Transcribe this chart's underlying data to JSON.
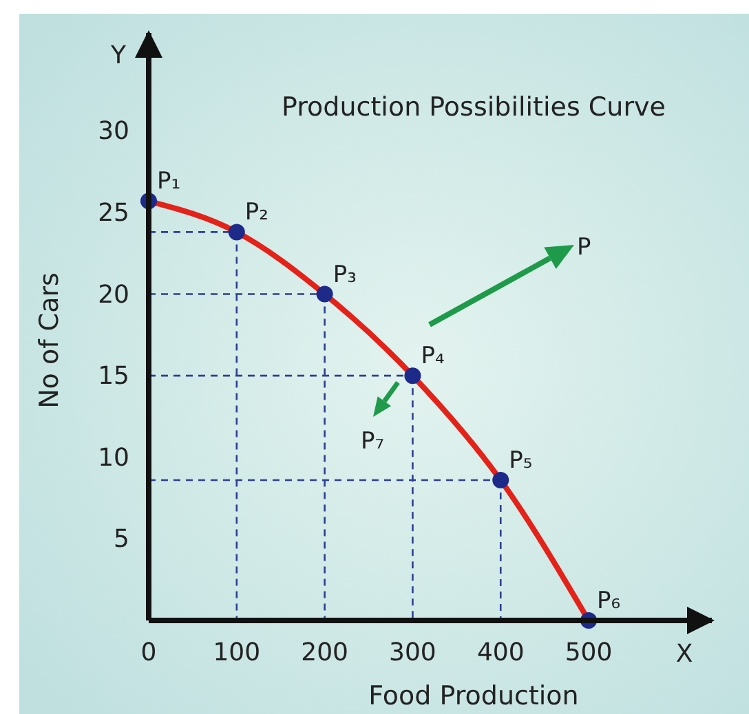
{
  "chart_data": {
    "type": "line",
    "title": "Production Possibilities Curve",
    "xlabel": "Food Production",
    "ylabel": "No of Cars",
    "x": [
      0,
      100,
      200,
      300,
      400,
      500
    ],
    "series": [
      {
        "color": "#e32219",
        "values": [
          25.7,
          23.8,
          20,
          15,
          8.6,
          0
        ],
        "marker": "none"
      },
      {
        "type": "scatter",
        "color": "#1e2a8a",
        "values": [
          25.7,
          23.8,
          20,
          15,
          8.6,
          0
        ],
        "marker": "circle",
        "value_labels": [
          "P₁",
          "P₂",
          "P₃",
          "P₄",
          "P₅",
          "P₆"
        ]
      }
    ],
    "xlim": [
      0,
      640
    ],
    "ylim": [
      0,
      36
    ],
    "xticks": [
      0,
      100,
      200,
      300,
      400,
      500
    ],
    "yticks": [
      5,
      10,
      15,
      20,
      25,
      30
    ],
    "grid": false,
    "annotations": [
      "Y",
      "X",
      "P",
      "P₇"
    ]
  }
}
